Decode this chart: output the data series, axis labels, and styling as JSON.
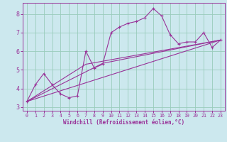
{
  "xlabel": "Windchill (Refroidissement éolien,°C)",
  "ylabel": "",
  "bg_color": "#cce8ee",
  "line_color": "#993399",
  "grid_color": "#99ccbb",
  "xlim": [
    -0.5,
    23.5
  ],
  "ylim": [
    2.8,
    8.6
  ],
  "xticks": [
    0,
    1,
    2,
    3,
    4,
    5,
    6,
    7,
    8,
    9,
    10,
    11,
    12,
    13,
    14,
    15,
    16,
    17,
    18,
    19,
    20,
    21,
    22,
    23
  ],
  "yticks": [
    3,
    4,
    5,
    6,
    7,
    8
  ],
  "main_x": [
    0,
    1,
    2,
    3,
    4,
    5,
    6,
    7,
    8,
    9,
    10,
    11,
    12,
    13,
    14,
    15,
    16,
    17,
    18,
    19,
    20,
    21,
    22,
    23
  ],
  "main_y": [
    3.3,
    4.2,
    4.8,
    4.2,
    3.7,
    3.5,
    3.6,
    6.0,
    5.1,
    5.3,
    7.0,
    7.3,
    7.5,
    7.6,
    7.8,
    8.3,
    7.9,
    6.9,
    6.4,
    6.5,
    6.5,
    7.0,
    6.2,
    6.6
  ],
  "line2_x": [
    0,
    23
  ],
  "line2_y": [
    3.3,
    6.6
  ],
  "line3_x": [
    0,
    7,
    23
  ],
  "line3_y": [
    3.3,
    5.3,
    6.6
  ],
  "line4_x": [
    0,
    9,
    23
  ],
  "line4_y": [
    3.3,
    5.35,
    6.6
  ]
}
